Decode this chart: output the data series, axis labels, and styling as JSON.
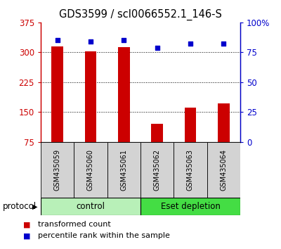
{
  "title": "GDS3599 / scl0066552.1_146-S",
  "samples": [
    "GSM435059",
    "GSM435060",
    "GSM435061",
    "GSM435062",
    "GSM435063",
    "GSM435064"
  ],
  "bar_values": [
    315,
    302,
    313,
    120,
    162,
    172
  ],
  "dot_values": [
    85,
    84,
    85,
    79,
    82,
    82
  ],
  "ylim_left": [
    75,
    375
  ],
  "ylim_right": [
    0,
    100
  ],
  "yticks_left": [
    75,
    150,
    225,
    300,
    375
  ],
  "yticks_right": [
    0,
    25,
    50,
    75,
    100
  ],
  "ytick_labels_right": [
    "0",
    "25",
    "50",
    "75",
    "100%"
  ],
  "grid_lines": [
    150,
    225,
    300
  ],
  "bar_color": "#cc0000",
  "dot_color": "#0000cc",
  "bar_width": 0.35,
  "groups": [
    {
      "label": "control",
      "indices": [
        0,
        1,
        2
      ],
      "color": "#b8f0b8"
    },
    {
      "label": "Eset depletion",
      "indices": [
        3,
        4,
        5
      ],
      "color": "#44dd44"
    }
  ],
  "protocol_label": "protocol",
  "legend_items": [
    {
      "color": "#cc0000",
      "label": "transformed count"
    },
    {
      "color": "#0000cc",
      "label": "percentile rank within the sample"
    }
  ]
}
